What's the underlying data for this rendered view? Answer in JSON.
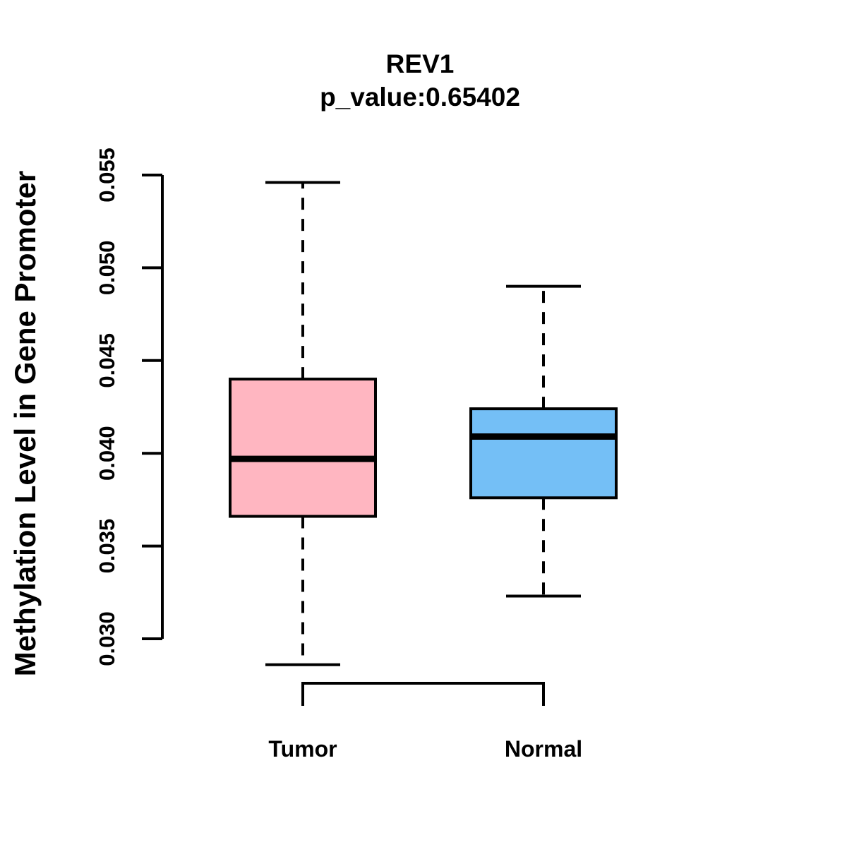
{
  "chart_data": {
    "type": "boxplot",
    "title": "REV1",
    "subtitle": "p_value:0.65402",
    "ylabel": "Methylation Level in Gene Promoter",
    "xlabel": "",
    "categories": [
      "Tumor",
      "Normal"
    ],
    "ylim": [
      0.03,
      0.055
    ],
    "y_ticks": [
      0.03,
      0.035,
      0.04,
      0.045,
      0.05,
      0.055
    ],
    "y_tick_labels": [
      "0.030",
      "0.035",
      "0.040",
      "0.045",
      "0.050",
      "0.055"
    ],
    "grid": false,
    "legend": "none",
    "series": [
      {
        "name": "Tumor",
        "fill": "#FFB6C1",
        "stats": {
          "lower_whisker": 0.0286,
          "q1": 0.0366,
          "median": 0.0397,
          "q3": 0.044,
          "upper_whisker": 0.0546
        }
      },
      {
        "name": "Normal",
        "fill": "#74BFF6",
        "stats": {
          "lower_whisker": 0.0323,
          "q1": 0.0376,
          "median": 0.0409,
          "q3": 0.0424,
          "upper_whisker": 0.049
        }
      }
    ],
    "stroke_color": "#000000",
    "background_color": "#FFFFFF"
  }
}
